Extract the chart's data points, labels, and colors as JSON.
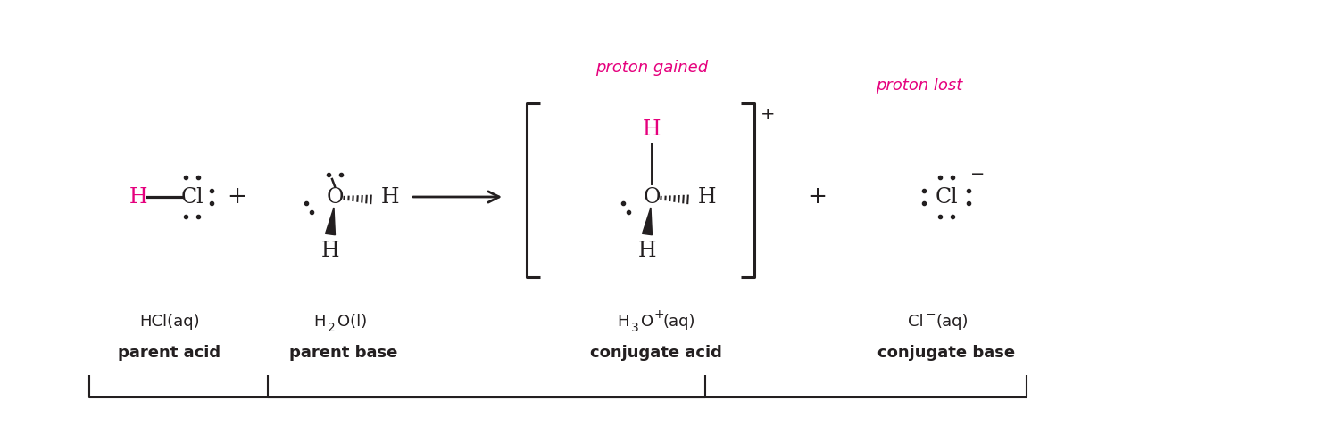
{
  "bg_color": "#ffffff",
  "magenta": "#e5007d",
  "black": "#231f20",
  "figsize": [
    15.0,
    4.86
  ],
  "dpi": 100,
  "labels": {
    "proton_gained": "proton gained",
    "proton_lost": "proton lost",
    "hcl_formula": "HCl(aq)",
    "hcl_role": "parent acid",
    "h2o_role": "parent base",
    "h3o_role": "conjugate acid",
    "cl_role": "conjugate base"
  }
}
